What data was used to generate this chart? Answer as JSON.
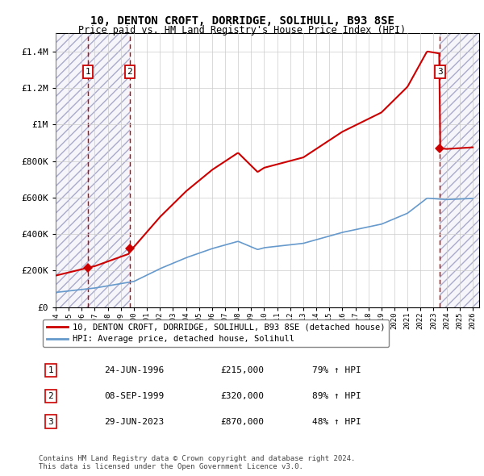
{
  "title": "10, DENTON CROFT, DORRIDGE, SOLIHULL, B93 8SE",
  "subtitle": "Price paid vs. HM Land Registry's House Price Index (HPI)",
  "xlim_start": 1994.0,
  "xlim_end": 2026.5,
  "ylim": [
    0,
    1500000
  ],
  "yticks": [
    0,
    200000,
    400000,
    600000,
    800000,
    1000000,
    1200000,
    1400000
  ],
  "ytick_labels": [
    "£0",
    "£200K",
    "£400K",
    "£600K",
    "£800K",
    "£1M",
    "£1.2M",
    "£1.4M"
  ],
  "transaction_dates": [
    1996.484,
    1999.688,
    2023.494
  ],
  "transaction_prices": [
    215000,
    320000,
    870000
  ],
  "transaction_labels": [
    "1",
    "2",
    "3"
  ],
  "vline_x": [
    1996.484,
    1999.688,
    2023.494
  ],
  "property_color": "#cc0000",
  "hpi_color": "#6699cc",
  "legend_property": "10, DENTON CROFT, DORRIDGE, SOLIHULL, B93 8SE (detached house)",
  "legend_hpi": "HPI: Average price, detached house, Solihull",
  "table_rows": [
    {
      "num": "1",
      "date": "24-JUN-1996",
      "price": "£215,000",
      "hpi": "79% ↑ HPI"
    },
    {
      "num": "2",
      "date": "08-SEP-1999",
      "price": "£320,000",
      "hpi": "89% ↑ HPI"
    },
    {
      "num": "3",
      "date": "29-JUN-2023",
      "price": "£870,000",
      "hpi": "48% ↑ HPI"
    }
  ],
  "footnote": "Contains HM Land Registry data © Crown copyright and database right 2024.\nThis data is licensed under the Open Government Licence v3.0.",
  "bg_color": "#ffffff",
  "grid_color": "#cccccc"
}
